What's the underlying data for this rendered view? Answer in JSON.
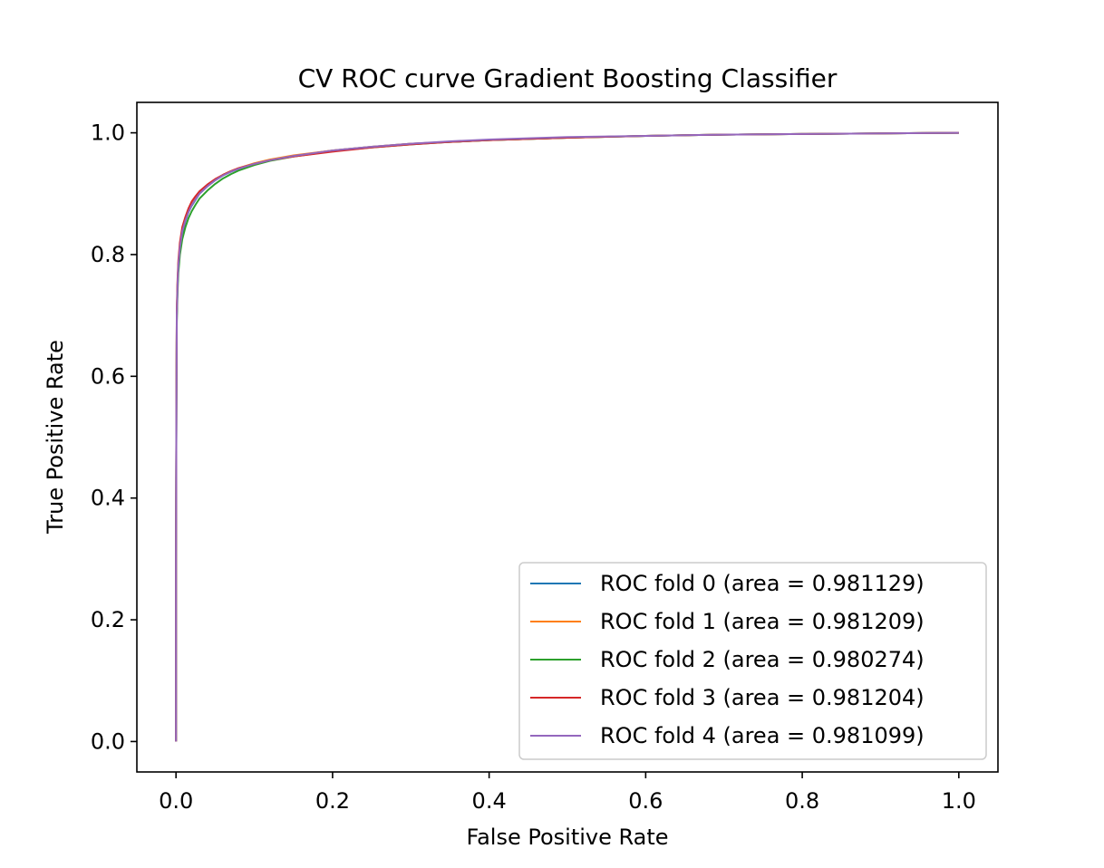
{
  "chart_data": {
    "type": "line",
    "title": "CV ROC curve Gradient Boosting Classifier",
    "xlabel": "False Positive Rate",
    "ylabel": "True Positive Rate",
    "xlim": [
      -0.05,
      1.05
    ],
    "ylim": [
      -0.05,
      1.05
    ],
    "xticks": [
      0.0,
      0.2,
      0.4,
      0.6,
      0.8,
      1.0
    ],
    "yticks": [
      0.0,
      0.2,
      0.4,
      0.6,
      0.8,
      1.0
    ],
    "xtick_labels": [
      "0.0",
      "0.2",
      "0.4",
      "0.6",
      "0.8",
      "1.0"
    ],
    "ytick_labels": [
      "0.0",
      "0.2",
      "0.4",
      "0.6",
      "0.8",
      "1.0"
    ],
    "grid": false,
    "legend_location": "lower right",
    "series": [
      {
        "name": "ROC fold 0 (area = 0.981129)",
        "color": "#1f77b4",
        "x": [
          0.0,
          0.0,
          0.0005,
          0.001,
          0.002,
          0.003,
          0.005,
          0.008,
          0.012,
          0.016,
          0.02,
          0.025,
          0.03,
          0.04,
          0.05,
          0.06,
          0.07,
          0.08,
          0.1,
          0.12,
          0.15,
          0.2,
          0.25,
          0.3,
          0.35,
          0.4,
          0.5,
          0.6,
          0.7,
          0.8,
          0.9,
          1.0
        ],
        "y": [
          0.0,
          0.3,
          0.55,
          0.7,
          0.75,
          0.78,
          0.81,
          0.835,
          0.855,
          0.87,
          0.88,
          0.89,
          0.9,
          0.912,
          0.922,
          0.93,
          0.936,
          0.941,
          0.949,
          0.955,
          0.962,
          0.971,
          0.977,
          0.982,
          0.985,
          0.988,
          0.992,
          0.995,
          0.997,
          0.998,
          0.999,
          1.0
        ]
      },
      {
        "name": "ROC fold 1 (area = 0.981209)",
        "color": "#ff7f0e",
        "x": [
          0.0,
          0.0,
          0.0005,
          0.001,
          0.002,
          0.003,
          0.005,
          0.008,
          0.012,
          0.016,
          0.02,
          0.025,
          0.03,
          0.04,
          0.05,
          0.06,
          0.07,
          0.08,
          0.1,
          0.12,
          0.15,
          0.2,
          0.25,
          0.3,
          0.35,
          0.4,
          0.5,
          0.6,
          0.7,
          0.8,
          0.9,
          1.0
        ],
        "y": [
          0.0,
          0.31,
          0.56,
          0.705,
          0.755,
          0.785,
          0.815,
          0.84,
          0.858,
          0.872,
          0.882,
          0.892,
          0.901,
          0.913,
          0.923,
          0.931,
          0.937,
          0.942,
          0.95,
          0.956,
          0.963,
          0.971,
          0.977,
          0.982,
          0.985,
          0.988,
          0.992,
          0.995,
          0.997,
          0.998,
          0.999,
          1.0
        ]
      },
      {
        "name": "ROC fold 2 (area = 0.980274)",
        "color": "#2ca02c",
        "x": [
          0.0,
          0.0,
          0.0005,
          0.001,
          0.002,
          0.003,
          0.005,
          0.008,
          0.012,
          0.016,
          0.02,
          0.025,
          0.03,
          0.04,
          0.05,
          0.06,
          0.07,
          0.08,
          0.1,
          0.12,
          0.15,
          0.2,
          0.25,
          0.3,
          0.35,
          0.4,
          0.5,
          0.6,
          0.7,
          0.8,
          0.9,
          1.0
        ],
        "y": [
          0.0,
          0.29,
          0.54,
          0.69,
          0.74,
          0.77,
          0.8,
          0.825,
          0.845,
          0.86,
          0.871,
          0.882,
          0.892,
          0.905,
          0.916,
          0.925,
          0.932,
          0.938,
          0.947,
          0.954,
          0.961,
          0.97,
          0.976,
          0.981,
          0.985,
          0.988,
          0.992,
          0.995,
          0.997,
          0.998,
          0.999,
          1.0
        ]
      },
      {
        "name": "ROC fold 3 (area = 0.981204)",
        "color": "#d62728",
        "x": [
          0.0,
          0.0,
          0.0005,
          0.001,
          0.002,
          0.003,
          0.005,
          0.008,
          0.012,
          0.016,
          0.02,
          0.025,
          0.03,
          0.04,
          0.05,
          0.06,
          0.07,
          0.08,
          0.1,
          0.12,
          0.15,
          0.2,
          0.25,
          0.3,
          0.35,
          0.4,
          0.5,
          0.6,
          0.7,
          0.8,
          0.9,
          1.0
        ],
        "y": [
          0.0,
          0.3,
          0.56,
          0.71,
          0.76,
          0.79,
          0.82,
          0.845,
          0.862,
          0.876,
          0.887,
          0.896,
          0.904,
          0.915,
          0.924,
          0.931,
          0.937,
          0.942,
          0.949,
          0.955,
          0.961,
          0.969,
          0.976,
          0.981,
          0.985,
          0.988,
          0.992,
          0.995,
          0.997,
          0.998,
          0.999,
          1.0
        ]
      },
      {
        "name": "ROC fold 4 (area = 0.981099)",
        "color": "#9467bd",
        "x": [
          0.0,
          0.0,
          0.0005,
          0.001,
          0.002,
          0.003,
          0.005,
          0.008,
          0.012,
          0.016,
          0.02,
          0.025,
          0.03,
          0.04,
          0.05,
          0.06,
          0.07,
          0.08,
          0.1,
          0.12,
          0.15,
          0.2,
          0.25,
          0.3,
          0.35,
          0.4,
          0.5,
          0.6,
          0.7,
          0.8,
          0.9,
          1.0
        ],
        "y": [
          0.0,
          0.3,
          0.55,
          0.7,
          0.752,
          0.782,
          0.812,
          0.838,
          0.856,
          0.87,
          0.881,
          0.891,
          0.9,
          0.912,
          0.922,
          0.93,
          0.936,
          0.941,
          0.949,
          0.955,
          0.962,
          0.971,
          0.977,
          0.982,
          0.986,
          0.989,
          0.993,
          0.995,
          0.997,
          0.998,
          0.999,
          1.0
        ]
      }
    ]
  }
}
